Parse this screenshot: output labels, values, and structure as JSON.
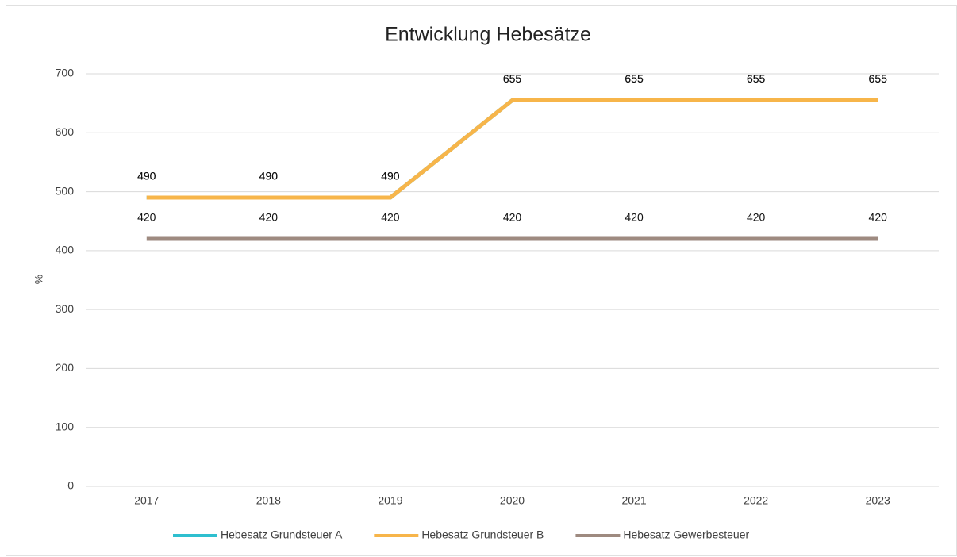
{
  "chart_data": {
    "type": "line",
    "title": "Entwicklung Hebesätze",
    "y_label": "%",
    "categories": [
      "2017",
      "2018",
      "2019",
      "2020",
      "2021",
      "2022",
      "2023"
    ],
    "series": [
      {
        "name": "Hebesatz Grundsteuer A",
        "color": "#2ebfcf",
        "values": [
          490,
          490,
          490,
          655,
          655,
          655,
          655
        ]
      },
      {
        "name": "Hebesatz Grundsteuer B",
        "color": "#f7b54a",
        "values": [
          490,
          490,
          490,
          655,
          655,
          655,
          655
        ]
      },
      {
        "name": "Hebesatz Gewerbesteuer",
        "color": "#9e8a80",
        "values": [
          420,
          420,
          420,
          420,
          420,
          420,
          420
        ]
      }
    ],
    "ylim": [
      0,
      700
    ],
    "yticks": [
      0,
      100,
      200,
      300,
      400,
      500,
      600,
      700
    ],
    "grid": true,
    "legend": "bottom"
  }
}
